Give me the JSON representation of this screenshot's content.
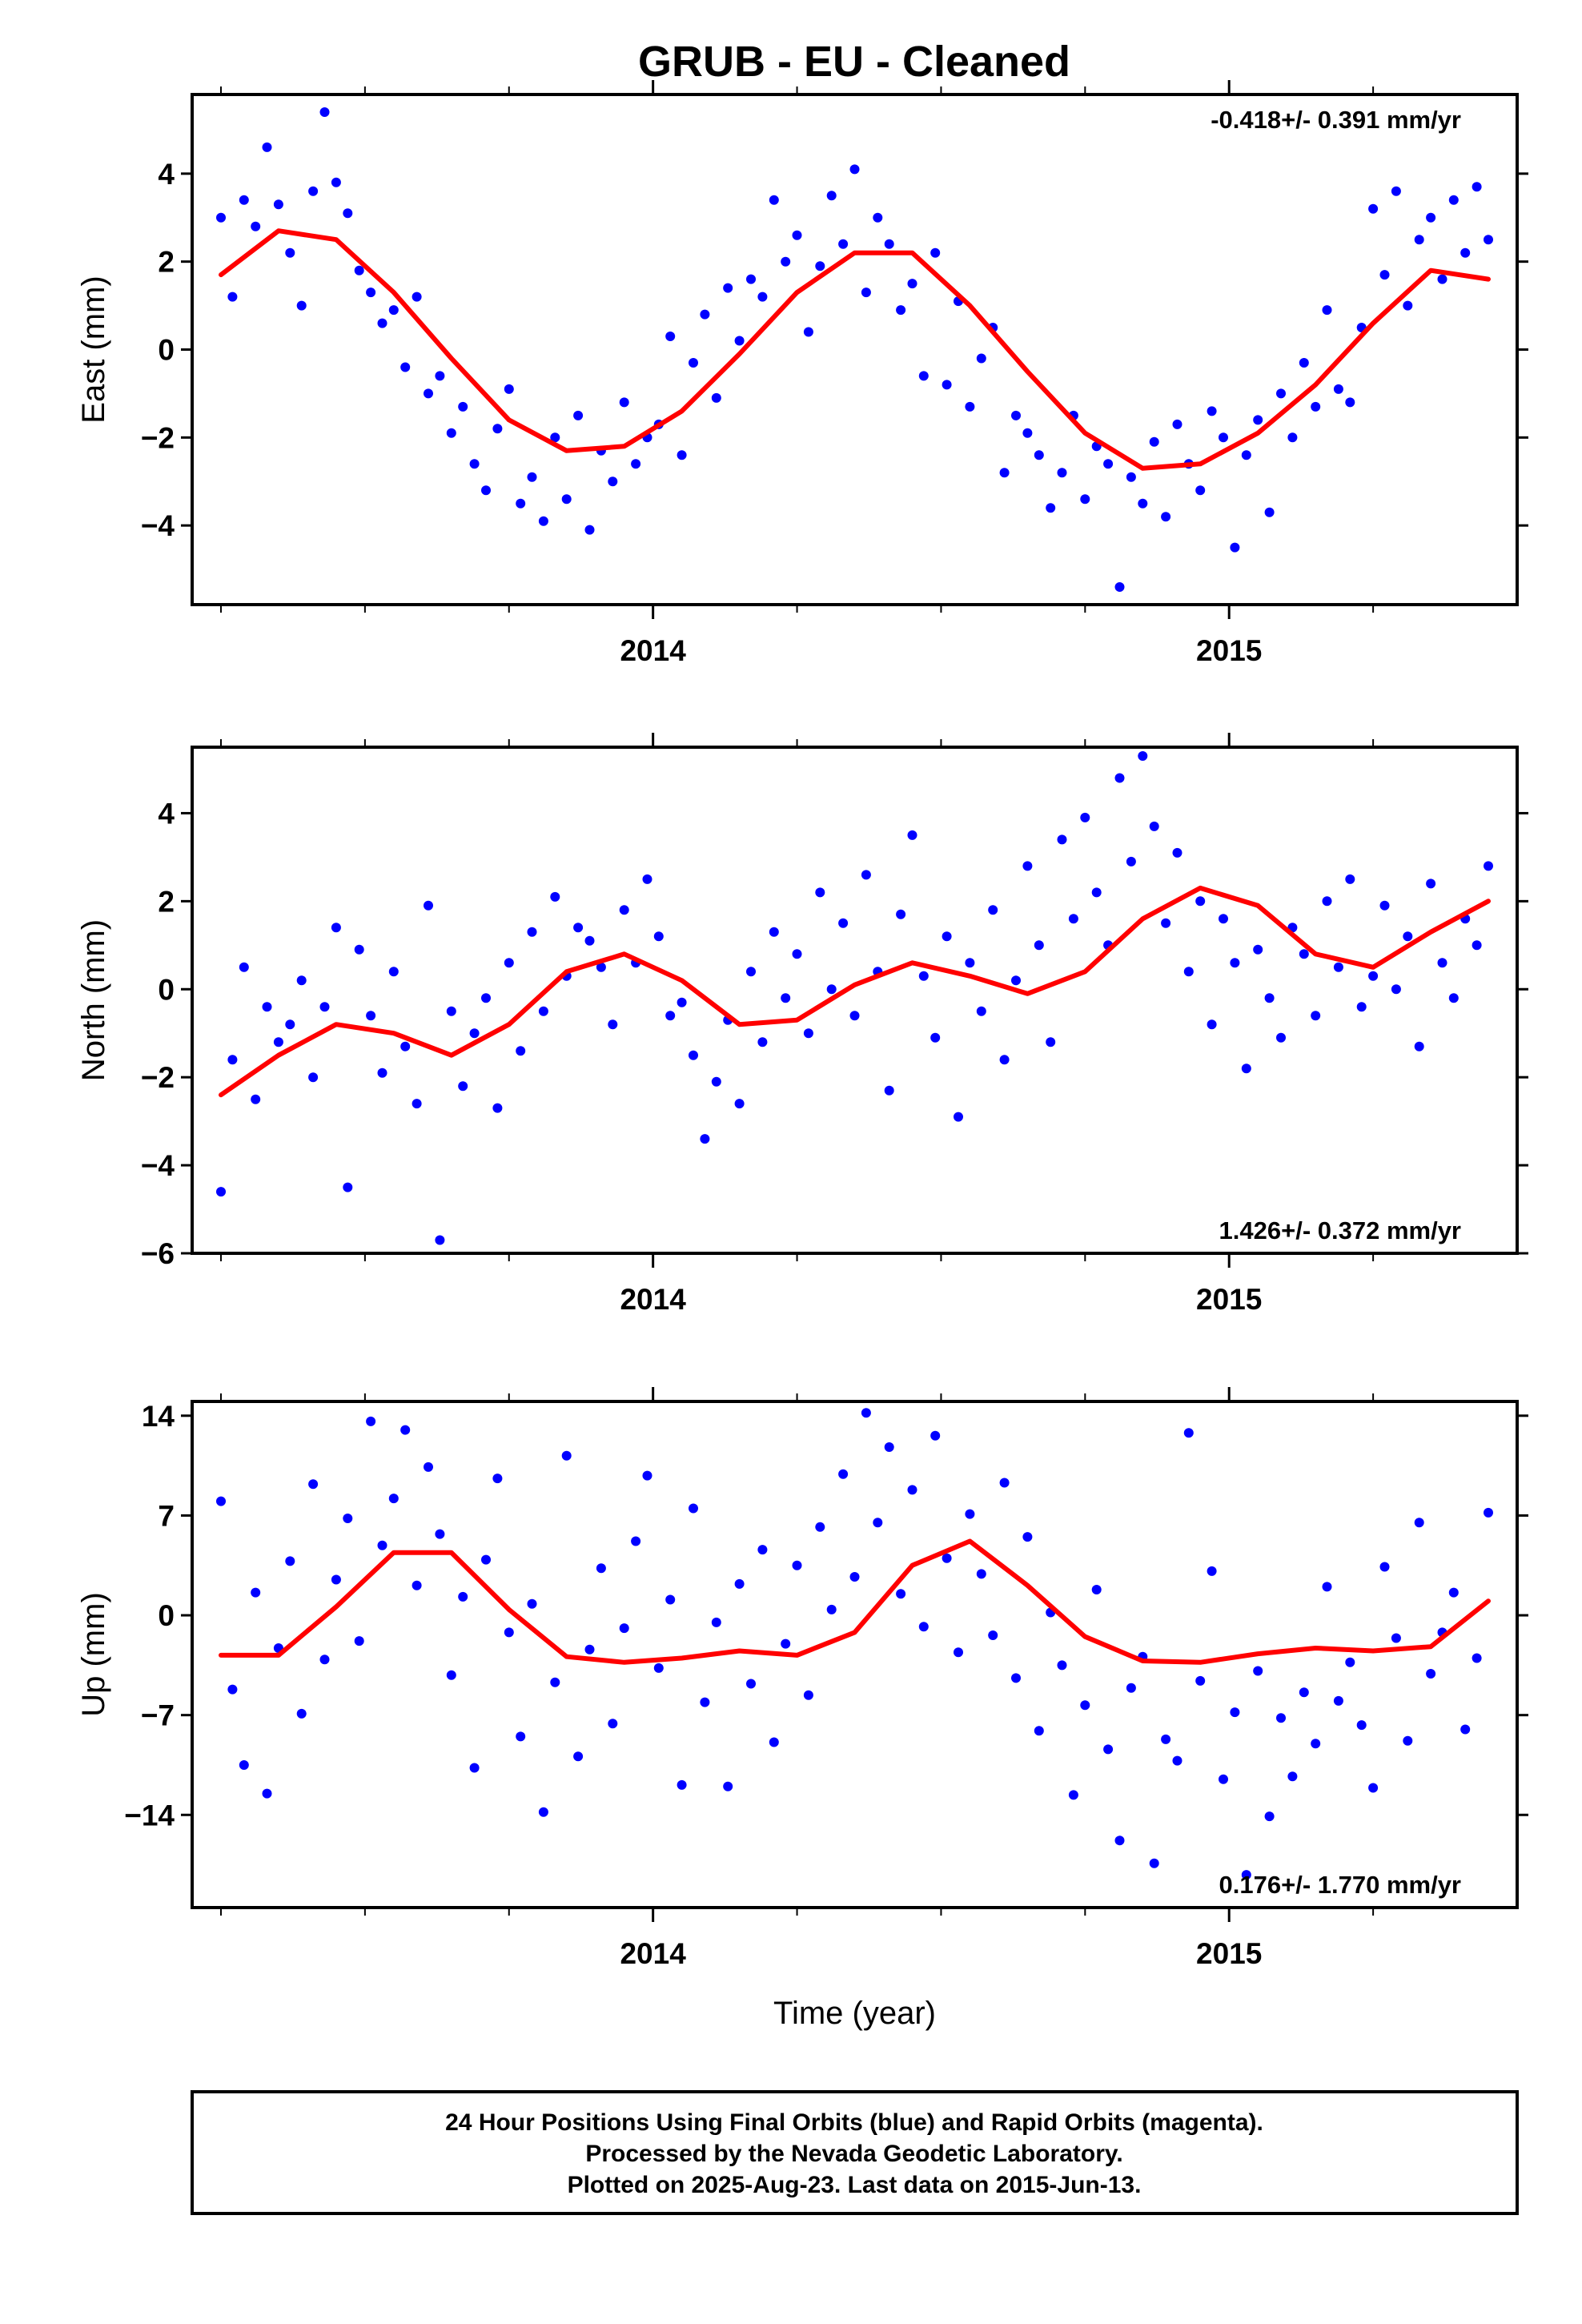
{
  "title": "GRUB  - EU - Cleaned",
  "colors": {
    "points": "#0000ff",
    "fit": "#ff0000",
    "frame": "#000000"
  },
  "footer": {
    "lines": [
      "24 Hour Positions Using Final Orbits (blue) and Rapid Orbits (magenta).",
      "Processed by the Nevada Geodetic Laboratory.",
      "Plotted on 2025-Aug-23. Last data on 2015-Jun-13."
    ]
  },
  "chart_data": [
    {
      "type": "scatter",
      "name": "east",
      "ylabel": "East (mm)",
      "xlabel": "",
      "rate_text": "-0.418+/- 0.391 mm/yr",
      "rate_position": "top-right",
      "xlim": [
        2013.2,
        2015.5
      ],
      "ylim": [
        -5.8,
        5.8
      ],
      "yticks": [
        -4,
        -2,
        0,
        2,
        4
      ],
      "xticks": [
        2014,
        2015
      ],
      "xtick_labels": [
        "2014",
        "2015"
      ],
      "x_minor_ticks": [
        2013.25,
        2013.5,
        2013.75,
        2014.25,
        2014.5,
        2014.75,
        2015.25
      ],
      "fit": {
        "x": [
          2013.25,
          2013.35,
          2013.45,
          2013.55,
          2013.65,
          2013.75,
          2013.85,
          2013.95,
          2014.05,
          2014.15,
          2014.25,
          2014.35,
          2014.45,
          2014.55,
          2014.65,
          2014.75,
          2014.85,
          2014.95,
          2015.05,
          2015.15,
          2015.25,
          2015.35,
          2015.45
        ],
        "y": [
          1.7,
          2.7,
          2.5,
          1.3,
          -0.2,
          -1.6,
          -2.3,
          -2.2,
          -1.4,
          -0.1,
          1.3,
          2.2,
          2.2,
          1.0,
          -0.5,
          -1.9,
          -2.7,
          -2.6,
          -1.9,
          -0.8,
          0.6,
          1.8,
          1.6
        ]
      },
      "points": {
        "x": [
          2013.25,
          2013.27,
          2013.29,
          2013.31,
          2013.33,
          2013.35,
          2013.37,
          2013.39,
          2013.41,
          2013.43,
          2013.45,
          2013.47,
          2013.49,
          2013.51,
          2013.53,
          2013.55,
          2013.57,
          2013.59,
          2013.61,
          2013.63,
          2013.65,
          2013.67,
          2013.69,
          2013.71,
          2013.73,
          2013.75,
          2013.77,
          2013.79,
          2013.81,
          2013.83,
          2013.85,
          2013.87,
          2013.89,
          2013.91,
          2013.93,
          2013.95,
          2013.97,
          2013.99,
          2014.01,
          2014.03,
          2014.05,
          2014.07,
          2014.09,
          2014.11,
          2014.13,
          2014.15,
          2014.17,
          2014.19,
          2014.21,
          2014.23,
          2014.25,
          2014.27,
          2014.29,
          2014.31,
          2014.33,
          2014.35,
          2014.37,
          2014.39,
          2014.41,
          2014.43,
          2014.45,
          2014.47,
          2014.49,
          2014.51,
          2014.53,
          2014.55,
          2014.57,
          2014.59,
          2014.61,
          2014.63,
          2014.65,
          2014.67,
          2014.69,
          2014.71,
          2014.73,
          2014.75,
          2014.77,
          2014.79,
          2014.81,
          2014.83,
          2014.85,
          2014.87,
          2014.89,
          2014.91,
          2014.93,
          2014.95,
          2014.97,
          2014.99,
          2015.01,
          2015.03,
          2015.05,
          2015.07,
          2015.09,
          2015.11,
          2015.13,
          2015.15,
          2015.17,
          2015.19,
          2015.21,
          2015.23,
          2015.25,
          2015.27,
          2015.29,
          2015.31,
          2015.33,
          2015.35,
          2015.37,
          2015.39,
          2015.41,
          2015.43,
          2015.45
        ],
        "y": [
          3.0,
          1.2,
          3.4,
          2.8,
          4.6,
          3.3,
          2.2,
          1.0,
          3.6,
          5.4,
          3.8,
          3.1,
          1.8,
          1.3,
          0.6,
          0.9,
          -0.4,
          1.2,
          -1.0,
          -0.6,
          -1.9,
          -1.3,
          -2.6,
          -3.2,
          -1.8,
          -0.9,
          -3.5,
          -2.9,
          -3.9,
          -2.0,
          -3.4,
          -1.5,
          -4.1,
          -2.3,
          -3.0,
          -1.2,
          -2.6,
          -2.0,
          -1.7,
          0.3,
          -2.4,
          -0.3,
          0.8,
          -1.1,
          1.4,
          0.2,
          1.6,
          1.2,
          3.4,
          2.0,
          2.6,
          0.4,
          1.9,
          3.5,
          2.4,
          4.1,
          1.3,
          3.0,
          2.4,
          0.9,
          1.5,
          -0.6,
          2.2,
          -0.8,
          1.1,
          -1.3,
          -0.2,
          0.5,
          -2.8,
          -1.5,
          -1.9,
          -2.4,
          -3.6,
          -2.8,
          -1.5,
          -3.4,
          -2.2,
          -2.6,
          -5.4,
          -2.9,
          -3.5,
          -2.1,
          -3.8,
          -1.7,
          -2.6,
          -3.2,
          -1.4,
          -2.0,
          -4.5,
          -2.4,
          -1.6,
          -3.7,
          -1.0,
          -2.0,
          -0.3,
          -1.3,
          0.9,
          -0.9,
          -1.2,
          0.5,
          3.2,
          1.7,
          3.6,
          1.0,
          2.5,
          3.0,
          1.6,
          3.4,
          2.2,
          3.7,
          2.5
        ]
      }
    },
    {
      "type": "scatter",
      "name": "north",
      "ylabel": "North (mm)",
      "xlabel": "",
      "rate_text": "1.426+/- 0.372 mm/yr",
      "rate_position": "bottom-right",
      "xlim": [
        2013.2,
        2015.5
      ],
      "ylim": [
        -6.0,
        5.5
      ],
      "yticks": [
        -6,
        -4,
        -2,
        0,
        2,
        4
      ],
      "xticks": [
        2014,
        2015
      ],
      "xtick_labels": [
        "2014",
        "2015"
      ],
      "x_minor_ticks": [
        2013.25,
        2013.5,
        2013.75,
        2014.25,
        2014.5,
        2014.75,
        2015.25
      ],
      "fit": {
        "x": [
          2013.25,
          2013.35,
          2013.45,
          2013.55,
          2013.65,
          2013.75,
          2013.85,
          2013.95,
          2014.05,
          2014.15,
          2014.25,
          2014.35,
          2014.45,
          2014.55,
          2014.65,
          2014.75,
          2014.85,
          2014.95,
          2015.05,
          2015.15,
          2015.25,
          2015.35,
          2015.45
        ],
        "y": [
          -2.4,
          -1.5,
          -0.8,
          -1.0,
          -1.5,
          -0.8,
          0.4,
          0.8,
          0.2,
          -0.8,
          -0.7,
          0.1,
          0.6,
          0.3,
          -0.1,
          0.4,
          1.6,
          2.3,
          1.9,
          0.8,
          0.5,
          1.3,
          2.0
        ]
      },
      "points": {
        "x": [
          2013.25,
          2013.27,
          2013.29,
          2013.31,
          2013.33,
          2013.35,
          2013.37,
          2013.39,
          2013.41,
          2013.43,
          2013.45,
          2013.47,
          2013.49,
          2013.51,
          2013.53,
          2013.55,
          2013.57,
          2013.59,
          2013.61,
          2013.63,
          2013.65,
          2013.67,
          2013.69,
          2013.71,
          2013.73,
          2013.75,
          2013.77,
          2013.79,
          2013.81,
          2013.83,
          2013.85,
          2013.87,
          2013.89,
          2013.91,
          2013.93,
          2013.95,
          2013.97,
          2013.99,
          2014.01,
          2014.03,
          2014.05,
          2014.07,
          2014.09,
          2014.11,
          2014.13,
          2014.15,
          2014.17,
          2014.19,
          2014.21,
          2014.23,
          2014.25,
          2014.27,
          2014.29,
          2014.31,
          2014.33,
          2014.35,
          2014.37,
          2014.39,
          2014.41,
          2014.43,
          2014.45,
          2014.47,
          2014.49,
          2014.51,
          2014.53,
          2014.55,
          2014.57,
          2014.59,
          2014.61,
          2014.63,
          2014.65,
          2014.67,
          2014.69,
          2014.71,
          2014.73,
          2014.75,
          2014.77,
          2014.79,
          2014.81,
          2014.83,
          2014.85,
          2014.87,
          2014.89,
          2014.91,
          2014.93,
          2014.95,
          2014.97,
          2014.99,
          2015.01,
          2015.03,
          2015.05,
          2015.07,
          2015.09,
          2015.11,
          2015.13,
          2015.15,
          2015.17,
          2015.19,
          2015.21,
          2015.23,
          2015.25,
          2015.27,
          2015.29,
          2015.31,
          2015.33,
          2015.35,
          2015.37,
          2015.39,
          2015.41,
          2015.43,
          2015.45
        ],
        "y": [
          -4.6,
          -1.6,
          0.5,
          -2.5,
          -0.4,
          -1.2,
          -0.8,
          0.2,
          -2.0,
          -0.4,
          1.4,
          -4.5,
          0.9,
          -0.6,
          -1.9,
          0.4,
          -1.3,
          -2.6,
          1.9,
          -5.7,
          -0.5,
          -2.2,
          -1.0,
          -0.2,
          -2.7,
          0.6,
          -1.4,
          1.3,
          -0.5,
          2.1,
          0.3,
          1.4,
          1.1,
          0.5,
          -0.8,
          1.8,
          0.6,
          2.5,
          1.2,
          -0.6,
          -0.3,
          -1.5,
          -3.4,
          -2.1,
          -0.7,
          -2.6,
          0.4,
          -1.2,
          1.3,
          -0.2,
          0.8,
          -1.0,
          2.2,
          0.0,
          1.5,
          -0.6,
          2.6,
          0.4,
          -2.3,
          1.7,
          3.5,
          0.3,
          -1.1,
          1.2,
          -2.9,
          0.6,
          -0.5,
          1.8,
          -1.6,
          0.2,
          2.8,
          1.0,
          -1.2,
          3.4,
          1.6,
          3.9,
          2.2,
          1.0,
          4.8,
          2.9,
          5.3,
          3.7,
          1.5,
          3.1,
          0.4,
          2.0,
          -0.8,
          1.6,
          0.6,
          -1.8,
          0.9,
          -0.2,
          -1.1,
          1.4,
          0.8,
          -0.6,
          2.0,
          0.5,
          2.5,
          -0.4,
          0.3,
          1.9,
          0.0,
          1.2,
          -1.3,
          2.4,
          0.6,
          -0.2,
          1.6,
          1.0,
          2.8
        ]
      }
    },
    {
      "type": "scatter",
      "name": "up",
      "ylabel": "Up (mm)",
      "xlabel": "Time (year)",
      "rate_text": "0.176+/- 1.770 mm/yr",
      "rate_position": "bottom-right",
      "xlim": [
        2013.2,
        2015.5
      ],
      "ylim": [
        -20.5,
        15.0
      ],
      "yticks": [
        -14,
        -7,
        0,
        7,
        14
      ],
      "xticks": [
        2014,
        2015
      ],
      "xtick_labels": [
        "2014",
        "2015"
      ],
      "x_minor_ticks": [
        2013.25,
        2013.5,
        2013.75,
        2014.25,
        2014.5,
        2014.75,
        2015.25
      ],
      "fit": {
        "x": [
          2013.25,
          2013.35,
          2013.45,
          2013.55,
          2013.65,
          2013.75,
          2013.85,
          2013.95,
          2014.05,
          2014.15,
          2014.25,
          2014.35,
          2014.45,
          2014.55,
          2014.65,
          2014.75,
          2014.85,
          2014.95,
          2015.05,
          2015.15,
          2015.25,
          2015.35,
          2015.45
        ],
        "y": [
          -2.8,
          -2.8,
          0.6,
          4.4,
          4.4,
          0.4,
          -2.9,
          -3.3,
          -3.0,
          -2.5,
          -2.8,
          -1.2,
          3.5,
          5.2,
          2.1,
          -1.5,
          -3.2,
          -3.3,
          -2.7,
          -2.3,
          -2.5,
          -2.2,
          1.0
        ]
      },
      "points": {
        "x": [
          2013.25,
          2013.27,
          2013.29,
          2013.31,
          2013.33,
          2013.35,
          2013.37,
          2013.39,
          2013.41,
          2013.43,
          2013.45,
          2013.47,
          2013.49,
          2013.51,
          2013.53,
          2013.55,
          2013.57,
          2013.59,
          2013.61,
          2013.63,
          2013.65,
          2013.67,
          2013.69,
          2013.71,
          2013.73,
          2013.75,
          2013.77,
          2013.79,
          2013.81,
          2013.83,
          2013.85,
          2013.87,
          2013.89,
          2013.91,
          2013.93,
          2013.95,
          2013.97,
          2013.99,
          2014.01,
          2014.03,
          2014.05,
          2014.07,
          2014.09,
          2014.11,
          2014.13,
          2014.15,
          2014.17,
          2014.19,
          2014.21,
          2014.23,
          2014.25,
          2014.27,
          2014.29,
          2014.31,
          2014.33,
          2014.35,
          2014.37,
          2014.39,
          2014.41,
          2014.43,
          2014.45,
          2014.47,
          2014.49,
          2014.51,
          2014.53,
          2014.55,
          2014.57,
          2014.59,
          2014.61,
          2014.63,
          2014.65,
          2014.67,
          2014.69,
          2014.71,
          2014.73,
          2014.75,
          2014.77,
          2014.79,
          2014.81,
          2014.83,
          2014.85,
          2014.87,
          2014.89,
          2014.91,
          2014.93,
          2014.95,
          2014.97,
          2014.99,
          2015.01,
          2015.03,
          2015.05,
          2015.07,
          2015.09,
          2015.11,
          2015.13,
          2015.15,
          2015.17,
          2015.19,
          2015.21,
          2015.23,
          2015.25,
          2015.27,
          2015.29,
          2015.31,
          2015.33,
          2015.35,
          2015.37,
          2015.39,
          2015.41,
          2015.43,
          2015.45
        ],
        "y": [
          8.0,
          -5.2,
          -10.5,
          1.6,
          -12.5,
          -2.3,
          3.8,
          -6.9,
          9.2,
          -3.1,
          2.5,
          6.8,
          -1.8,
          13.6,
          4.9,
          8.2,
          13.0,
          2.1,
          10.4,
          5.7,
          -4.2,
          1.3,
          -10.7,
          3.9,
          9.6,
          -1.2,
          -8.5,
          0.8,
          -13.8,
          -4.7,
          11.2,
          -9.9,
          -2.4,
          3.3,
          -7.6,
          -0.9,
          5.2,
          9.8,
          -3.7,
          1.1,
          -11.9,
          7.5,
          -6.1,
          -0.5,
          -12.0,
          2.2,
          -4.8,
          4.6,
          -8.9,
          -2.0,
          3.5,
          -5.6,
          6.2,
          0.4,
          9.9,
          2.7,
          14.2,
          6.5,
          11.8,
          1.5,
          8.8,
          -0.8,
          12.6,
          4.0,
          -2.6,
          7.1,
          2.9,
          -1.4,
          9.3,
          -4.4,
          5.5,
          -8.1,
          0.2,
          -3.5,
          -12.6,
          -6.3,
          1.8,
          -9.4,
          -15.8,
          -5.1,
          -2.9,
          -17.4,
          -8.7,
          -10.2,
          12.8,
          -4.6,
          3.1,
          -11.5,
          -6.8,
          -18.2,
          -3.9,
          -14.1,
          -7.2,
          -11.3,
          -5.4,
          -9.0,
          2.0,
          -6.0,
          -3.3,
          -7.7,
          -12.1,
          3.4,
          -1.6,
          -8.8,
          6.5,
          -4.1,
          -1.2,
          1.6,
          -8.0,
          -3.0,
          7.2
        ]
      }
    }
  ]
}
